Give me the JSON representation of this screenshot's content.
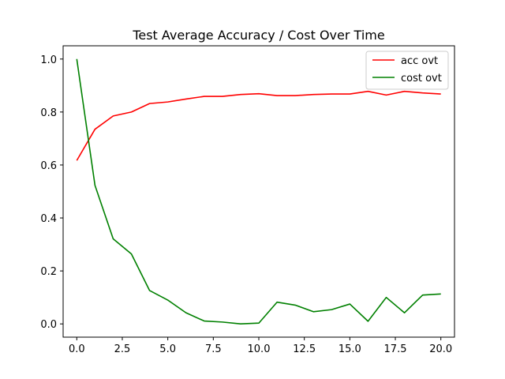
{
  "chart_data": {
    "type": "line",
    "title": "Test Average Accuracy / Cost Over Time",
    "xlabel": "",
    "ylabel": "",
    "xlim": [
      -0.75,
      20.75
    ],
    "ylim": [
      -0.05,
      1.05
    ],
    "xticks": [
      0.0,
      2.5,
      5.0,
      7.5,
      10.0,
      12.5,
      15.0,
      17.5,
      20.0
    ],
    "xtick_labels": [
      "0.0",
      "2.5",
      "5.0",
      "7.5",
      "10.0",
      "12.5",
      "15.0",
      "17.5",
      "20.0"
    ],
    "yticks": [
      0.0,
      0.2,
      0.4,
      0.6,
      0.8,
      1.0
    ],
    "ytick_labels": [
      "0.0",
      "0.2",
      "0.4",
      "0.6",
      "0.8",
      "1.0"
    ],
    "grid": false,
    "legend_position": "top-right",
    "x": [
      0,
      1,
      2,
      3,
      4,
      5,
      6,
      7,
      8,
      9,
      10,
      11,
      12,
      13,
      14,
      15,
      16,
      17,
      18,
      19,
      20
    ],
    "series": [
      {
        "name": "acc ovt",
        "color": "#ff0000",
        "values": [
          0.617,
          0.735,
          0.785,
          0.8,
          0.832,
          0.838,
          0.849,
          0.859,
          0.859,
          0.866,
          0.869,
          0.862,
          0.862,
          0.866,
          0.868,
          0.868,
          0.878,
          0.864,
          0.878,
          0.872,
          0.868
        ]
      },
      {
        "name": "cost ovt",
        "color": "#008000",
        "values": [
          1.0,
          0.523,
          0.321,
          0.264,
          0.126,
          0.09,
          0.042,
          0.011,
          0.007,
          0.0,
          0.003,
          0.082,
          0.071,
          0.046,
          0.054,
          0.075,
          0.01,
          0.1,
          0.042,
          0.109,
          0.113
        ]
      }
    ]
  }
}
